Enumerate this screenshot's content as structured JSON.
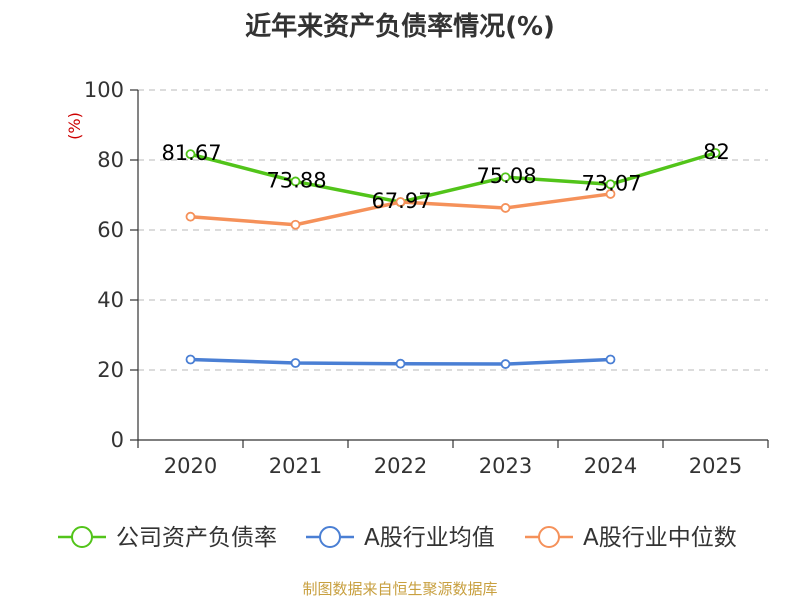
{
  "chart_data": {
    "type": "line",
    "title": "近年来资产负债率情况(%)",
    "ylabel": "(%)",
    "xlabel": "",
    "categories": [
      "2020",
      "2021",
      "2022",
      "2023",
      "2024",
      "2025"
    ],
    "ylim": [
      0,
      100
    ],
    "yticks": [
      0,
      20,
      40,
      60,
      80,
      100
    ],
    "grid": "horizontal dashed",
    "legend_position": "bottom",
    "series": [
      {
        "name": "公司资产负债率",
        "color": "#52c41a",
        "values": [
          81.67,
          73.88,
          67.97,
          75.08,
          73.07,
          82
        ],
        "data_labels": [
          "81.67",
          "73.88",
          "67.97",
          "75.08",
          "73.07",
          "82"
        ]
      },
      {
        "name": "A股行业均值",
        "color": "#4a7fd4",
        "values": [
          23.0,
          22.0,
          21.8,
          21.7,
          23.0,
          null
        ]
      },
      {
        "name": "A股行业中位数",
        "color": "#f5915a",
        "values": [
          63.8,
          61.5,
          68.0,
          66.3,
          70.3,
          null
        ]
      }
    ]
  },
  "source_note": "制图数据来自恒生聚源数据库"
}
